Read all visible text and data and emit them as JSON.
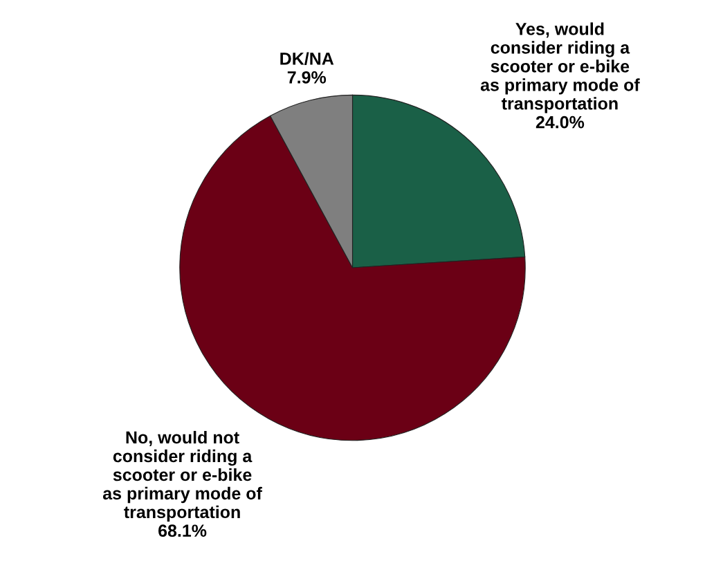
{
  "chart_data": {
    "type": "pie",
    "categories": [
      "Yes, would\nconsider riding a\nscooter or e-bike\nas primary mode of\ntransportation",
      "No, would not\nconsider riding a\nscooter or e-bike\nas primary mode of\ntransportation",
      "DK/NA"
    ],
    "values": [
      24.0,
      68.1,
      7.9
    ],
    "value_labels": [
      "24.0%",
      "68.1%",
      "7.9%"
    ],
    "colors": [
      "#1a6047",
      "#6b0015",
      "#7f7f7f"
    ],
    "legend": false
  }
}
